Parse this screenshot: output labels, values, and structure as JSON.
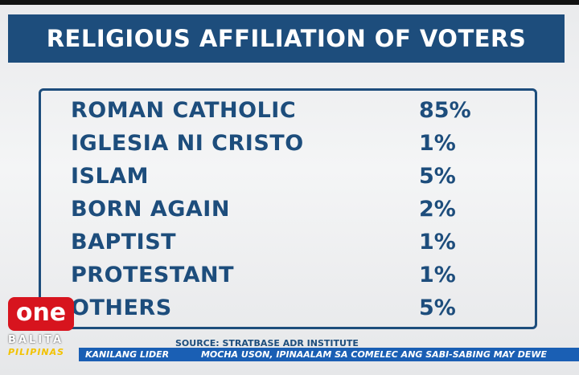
{
  "title": "RELIGIOUS AFFILIATION OF VOTERS",
  "table": {
    "rows": [
      [
        "ROMAN CATHOLIC",
        "85%"
      ],
      [
        "IGLESIA NI CRISTO",
        "1%"
      ],
      [
        "ISLAM",
        "5%"
      ],
      [
        "BORN AGAIN",
        "2%"
      ],
      [
        "BAPTIST",
        "1%"
      ],
      [
        "PROTESTANT",
        "1%"
      ],
      [
        "OTHERS",
        "5%"
      ]
    ]
  },
  "source": "SOURCE: STRATBASE ADR INSTITUTE",
  "ticker": [
    "KANILANG LIDER",
    "MOCHA USON, IPINAALAM SA COMELEC ANG SABI-SABING MAY DEWE"
  ],
  "logo": {
    "name": "one",
    "line1": "BALITA",
    "line2": "PILIPINAS"
  }
}
